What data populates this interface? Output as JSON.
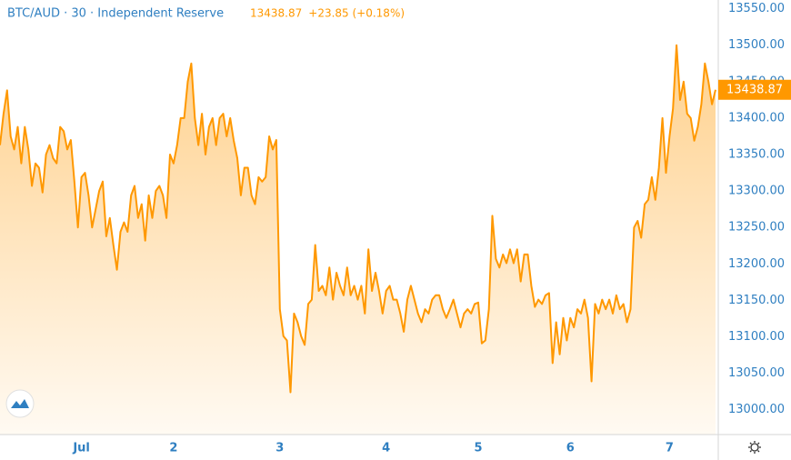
{
  "chart_data": {
    "type": "area",
    "title": "BTC/AUD · 30 · Independent Reserve",
    "change": "+23.85 (+0.18%)",
    "price_line": 13438.87,
    "color": "#ff9800",
    "grid": false,
    "ylim": [
      12966,
      13562
    ],
    "yticks": [
      {
        "value": 13000,
        "label": "13000.00"
      },
      {
        "value": 13050,
        "label": "13050.00"
      },
      {
        "value": 13100,
        "label": "13100.00"
      },
      {
        "value": 13150,
        "label": "13150.00"
      },
      {
        "value": 13200,
        "label": "13200.00"
      },
      {
        "value": 13250,
        "label": "13250.00"
      },
      {
        "value": 13300,
        "label": "13300.00"
      },
      {
        "value": 13350,
        "label": "13350.00"
      },
      {
        "value": 13400,
        "label": "13400.00"
      },
      {
        "value": 13450,
        "label": "13450.00"
      },
      {
        "value": 13500,
        "label": "13500.00"
      },
      {
        "value": 13550,
        "label": "13550.00"
      }
    ],
    "categories": [
      null,
      null,
      null,
      null,
      null,
      null,
      null,
      null,
      null,
      null,
      null,
      null,
      null,
      null,
      null,
      null,
      null,
      null,
      null,
      null,
      null,
      null,
      null,
      "Jul",
      null,
      null,
      null,
      null,
      null,
      null,
      null,
      null,
      null,
      null,
      null,
      null,
      null,
      null,
      null,
      null,
      null,
      null,
      null,
      null,
      null,
      null,
      null,
      null,
      null,
      "2",
      null,
      null,
      null,
      null,
      null,
      null,
      null,
      null,
      null,
      null,
      null,
      null,
      null,
      null,
      null,
      null,
      null,
      null,
      null,
      null,
      null,
      null,
      null,
      null,
      null,
      null,
      null,
      null,
      null,
      "3",
      null,
      null,
      null,
      null,
      null,
      null,
      null,
      null,
      null,
      null,
      null,
      null,
      null,
      null,
      null,
      null,
      null,
      null,
      null,
      null,
      null,
      null,
      null,
      null,
      null,
      null,
      null,
      null,
      null,
      "4",
      null,
      null,
      null,
      null,
      null,
      null,
      null,
      null,
      null,
      null,
      null,
      null,
      null,
      null,
      null,
      null,
      null,
      null,
      null,
      null,
      null,
      null,
      null,
      null,
      null,
      "5",
      null,
      null,
      null,
      null,
      null,
      null,
      null,
      null,
      null,
      null,
      null,
      null,
      null,
      null,
      null,
      null,
      null,
      null,
      null,
      null,
      null,
      null,
      null,
      null,
      null,
      "6",
      null,
      null,
      null,
      null,
      null,
      null,
      null,
      null,
      null,
      null,
      null,
      null,
      null,
      null,
      null,
      null,
      null,
      null,
      null,
      null,
      null,
      null,
      null,
      null,
      null,
      null,
      null,
      "7",
      null,
      null,
      null,
      null,
      null,
      null,
      null,
      null,
      null,
      null,
      null,
      null,
      null
    ],
    "values": [
      13363,
      13406,
      13438,
      13375,
      13357,
      13388,
      13338,
      13388,
      13357,
      13307,
      13338,
      13332,
      13298,
      13350,
      13363,
      13345,
      13338,
      13388,
      13382,
      13357,
      13370,
      13313,
      13250,
      13319,
      13325,
      13294,
      13250,
      13275,
      13300,
      13313,
      13238,
      13263,
      13226,
      13192,
      13244,
      13257,
      13244,
      13294,
      13307,
      13263,
      13282,
      13232,
      13294,
      13263,
      13300,
      13307,
      13294,
      13263,
      13350,
      13338,
      13363,
      13400,
      13400,
      13450,
      13475,
      13400,
      13363,
      13406,
      13350,
      13388,
      13400,
      13363,
      13400,
      13406,
      13375,
      13400,
      13369,
      13345,
      13294,
      13332,
      13332,
      13294,
      13282,
      13319,
      13313,
      13319,
      13375,
      13357,
      13370,
      13138,
      13101,
      13095,
      13024,
      13132,
      13120,
      13101,
      13089,
      13145,
      13151,
      13226,
      13163,
      13170,
      13157,
      13195,
      13151,
      13188,
      13170,
      13157,
      13195,
      13157,
      13170,
      13151,
      13170,
      13132,
      13220,
      13163,
      13188,
      13163,
      13132,
      13163,
      13170,
      13151,
      13151,
      13132,
      13107,
      13151,
      13170,
      13151,
      13132,
      13120,
      13138,
      13132,
      13151,
      13157,
      13157,
      13138,
      13126,
      13138,
      13151,
      13132,
      13113,
      13132,
      13138,
      13132,
      13145,
      13147,
      13091,
      13095,
      13138,
      13266,
      13207,
      13195,
      13213,
      13201,
      13220,
      13201,
      13220,
      13176,
      13213,
      13213,
      13170,
      13141,
      13151,
      13145,
      13157,
      13160,
      13064,
      13120,
      13076,
      13126,
      13095,
      13126,
      13113,
      13138,
      13132,
      13151,
      13126,
      13039,
      13145,
      13132,
      13151,
      13138,
      13151,
      13132,
      13157,
      13138,
      13145,
      13120,
      13138,
      13250,
      13259,
      13236,
      13282,
      13288,
      13319,
      13288,
      13332,
      13400,
      13325,
      13375,
      13413,
      13500,
      13425,
      13450,
      13406,
      13400,
      13369,
      13388,
      13419,
      13475,
      13450,
      13419,
      13438.87
    ]
  }
}
